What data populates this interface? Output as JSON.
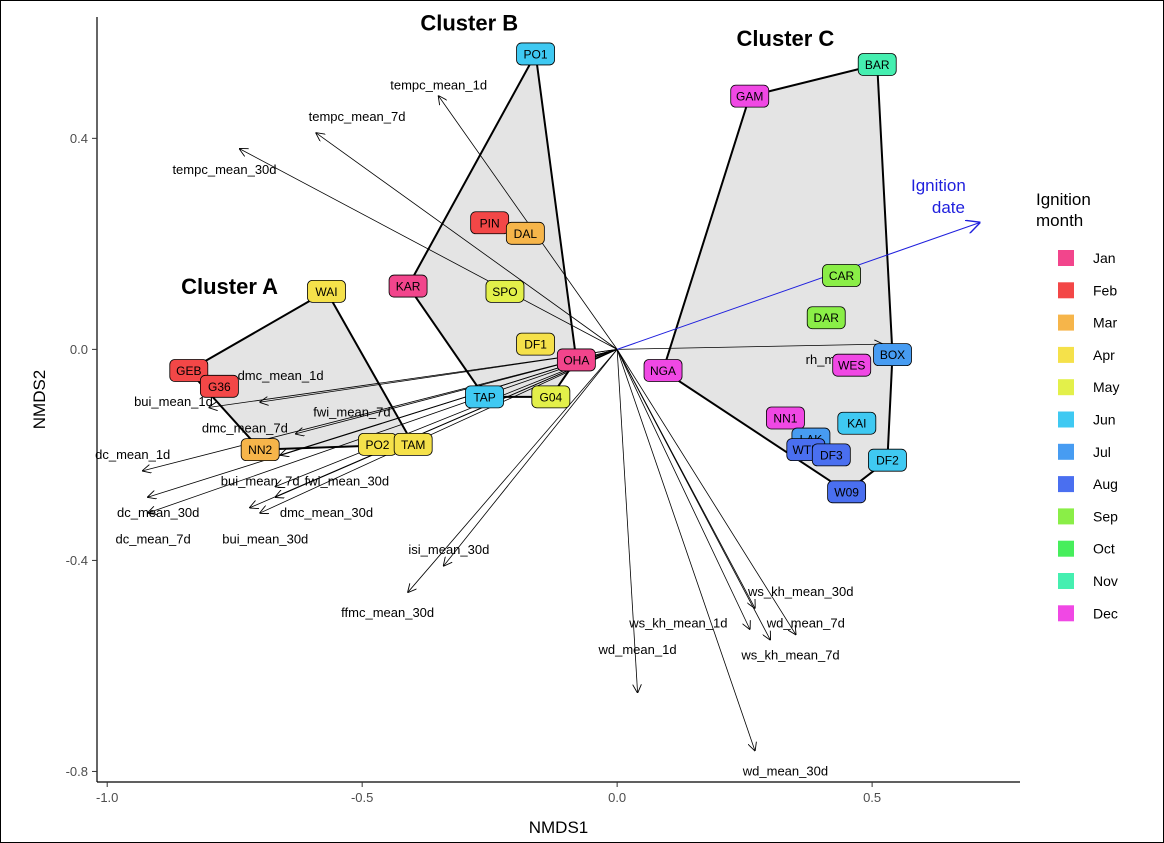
{
  "chart_data": {
    "type": "scatter",
    "xlabel": "NMDS1",
    "ylabel": "NMDS2",
    "xlim": [
      -1.02,
      0.79
    ],
    "ylim": [
      -0.82,
      0.63
    ],
    "xticks": [
      -1.0,
      -0.5,
      0.0,
      0.5
    ],
    "xtick_labels": [
      "-1.0",
      "-0.5",
      "0.0",
      "0.5"
    ],
    "yticks": [
      -0.8,
      -0.4,
      0.0,
      0.4
    ],
    "ytick_labels": [
      "-0.8",
      "-0.4",
      "0.0",
      "0.4"
    ],
    "grid": false,
    "legend": {
      "title_lines": [
        "Ignition",
        "month"
      ],
      "placement": "right",
      "entries": [
        {
          "name": "Jan",
          "color": "#f2458c"
        },
        {
          "name": "Feb",
          "color": "#f34747"
        },
        {
          "name": "Mar",
          "color": "#f6b54a"
        },
        {
          "name": "Apr",
          "color": "#f5e14a"
        },
        {
          "name": "May",
          "color": "#e3f04a"
        },
        {
          "name": "Jun",
          "color": "#3fc9f2"
        },
        {
          "name": "Jul",
          "color": "#479cf2"
        },
        {
          "name": "Aug",
          "color": "#4a6ff0"
        },
        {
          "name": "Sep",
          "color": "#8aee47"
        },
        {
          "name": "Oct",
          "color": "#47ee5c"
        },
        {
          "name": "Nov",
          "color": "#45efb0"
        },
        {
          "name": "Dec",
          "color": "#f048e4"
        }
      ]
    },
    "clusters": [
      {
        "name": "Cluster A",
        "label_at": [
          -0.76,
          0.12
        ],
        "hull": [
          "WAI",
          "GEB",
          "NN2",
          "TAM"
        ]
      },
      {
        "name": "Cluster B",
        "label_at": [
          -0.29,
          0.62
        ],
        "hull": [
          "PO1",
          "OHA",
          "G04",
          "TAP",
          "KAR"
        ]
      },
      {
        "name": "Cluster C",
        "label_at": [
          0.33,
          0.59
        ],
        "hull": [
          "BAR",
          "BOX",
          "DF2",
          "W09",
          "NGA",
          "GAM"
        ]
      }
    ],
    "points": [
      {
        "label": "PO1",
        "x": -0.16,
        "y": 0.56,
        "month": "Jun"
      },
      {
        "label": "BAR",
        "x": 0.51,
        "y": 0.54,
        "month": "Nov"
      },
      {
        "label": "GAM",
        "x": 0.26,
        "y": 0.48,
        "month": "Dec"
      },
      {
        "label": "PIN",
        "x": -0.25,
        "y": 0.24,
        "month": "Feb"
      },
      {
        "label": "DAL",
        "x": -0.18,
        "y": 0.22,
        "month": "Mar"
      },
      {
        "label": "CAR",
        "x": 0.44,
        "y": 0.14,
        "month": "Sep"
      },
      {
        "label": "WAI",
        "x": -0.57,
        "y": 0.11,
        "month": "Apr"
      },
      {
        "label": "KAR",
        "x": -0.41,
        "y": 0.12,
        "month": "Jan"
      },
      {
        "label": "SPO",
        "x": -0.22,
        "y": 0.11,
        "month": "May"
      },
      {
        "label": "DAR",
        "x": 0.41,
        "y": 0.06,
        "month": "Sep"
      },
      {
        "label": "DF1",
        "x": -0.16,
        "y": 0.01,
        "month": "Apr"
      },
      {
        "label": "BOX",
        "x": 0.54,
        "y": -0.01,
        "month": "Jul"
      },
      {
        "label": "OHA",
        "x": -0.08,
        "y": -0.02,
        "month": "Jan"
      },
      {
        "label": "WES",
        "x": 0.46,
        "y": -0.03,
        "month": "Dec"
      },
      {
        "label": "NGA",
        "x": 0.09,
        "y": -0.04,
        "month": "Dec"
      },
      {
        "label": "GEB",
        "x": -0.84,
        "y": -0.04,
        "month": "Feb"
      },
      {
        "label": "G36",
        "x": -0.78,
        "y": -0.07,
        "month": "Feb"
      },
      {
        "label": "TAP",
        "x": -0.26,
        "y": -0.09,
        "month": "Jun"
      },
      {
        "label": "G04",
        "x": -0.13,
        "y": -0.09,
        "month": "May"
      },
      {
        "label": "NN1",
        "x": 0.33,
        "y": -0.13,
        "month": "Dec"
      },
      {
        "label": "KAI",
        "x": 0.47,
        "y": -0.14,
        "month": "Jun"
      },
      {
        "label": "LAK",
        "x": 0.38,
        "y": -0.17,
        "month": "Jul"
      },
      {
        "label": "WTP",
        "x": 0.37,
        "y": -0.19,
        "month": "Aug"
      },
      {
        "label": "DF3",
        "x": 0.42,
        "y": -0.2,
        "month": "Aug"
      },
      {
        "label": "DF2",
        "x": 0.53,
        "y": -0.21,
        "month": "Jun"
      },
      {
        "label": "PO2",
        "x": -0.47,
        "y": -0.18,
        "month": "Apr"
      },
      {
        "label": "TAM",
        "x": -0.4,
        "y": -0.18,
        "month": "Apr"
      },
      {
        "label": "NN2",
        "x": -0.7,
        "y": -0.19,
        "month": "Mar"
      },
      {
        "label": "W09",
        "x": 0.45,
        "y": -0.27,
        "month": "Aug"
      }
    ],
    "vectors": [
      {
        "label": "tempc_mean_1d",
        "x": -0.35,
        "y": 0.48,
        "label_at": [
          -0.35,
          0.5
        ]
      },
      {
        "label": "tempc_mean_7d",
        "x": -0.59,
        "y": 0.41,
        "label_at": [
          -0.51,
          0.44
        ]
      },
      {
        "label": "tempc_mean_30d",
        "x": -0.74,
        "y": 0.38,
        "label_at": [
          -0.77,
          0.34
        ]
      },
      {
        "label": "dmc_mean_1d",
        "x": -0.7,
        "y": -0.1,
        "label_at": [
          -0.66,
          -0.05
        ]
      },
      {
        "label": "bui_mean_1d",
        "x": -0.8,
        "y": -0.11,
        "label_at": [
          -0.87,
          -0.1
        ]
      },
      {
        "label": "fwi_mean_7d",
        "x": -0.66,
        "y": -0.2,
        "label_at": [
          -0.52,
          -0.12
        ]
      },
      {
        "label": "dmc_mean_7d",
        "x": -0.63,
        "y": -0.16,
        "label_at": [
          -0.73,
          -0.15
        ]
      },
      {
        "label": "dc_mean_1d",
        "x": -0.93,
        "y": -0.23,
        "label_at": [
          -0.95,
          -0.2
        ]
      },
      {
        "label": "bui_mean_7d",
        "x": -0.67,
        "y": -0.28,
        "label_at": [
          -0.7,
          -0.25
        ]
      },
      {
        "label": "fwi_mean_30d",
        "x": -0.67,
        "y": -0.26,
        "label_at": [
          -0.53,
          -0.25
        ]
      },
      {
        "label": "dc_mean_30d",
        "x": -0.92,
        "y": -0.28,
        "label_at": [
          -0.9,
          -0.31
        ]
      },
      {
        "label": "dmc_mean_30d",
        "x": -0.72,
        "y": -0.3,
        "label_at": [
          -0.57,
          -0.31
        ]
      },
      {
        "label": "dc_mean_7d",
        "x": -0.92,
        "y": -0.31,
        "label_at": [
          -0.91,
          -0.36
        ]
      },
      {
        "label": "bui_mean_30d",
        "x": -0.7,
        "y": -0.31,
        "label_at": [
          -0.69,
          -0.36
        ]
      },
      {
        "label": "isi_mean_30d",
        "x": -0.34,
        "y": -0.41,
        "label_at": [
          -0.33,
          -0.38
        ]
      },
      {
        "label": "ffmc_mean_30d",
        "x": -0.41,
        "y": -0.46,
        "label_at": [
          -0.45,
          -0.5
        ]
      },
      {
        "label": "rh_mean",
        "x": 0.52,
        "y": 0.01,
        "label_at": [
          0.42,
          -0.02
        ]
      },
      {
        "label": "ws_kh_mean_30d",
        "x": 0.27,
        "y": -0.49,
        "label_at": [
          0.36,
          -0.46
        ]
      },
      {
        "label": "ws_kh_mean_1d",
        "x": 0.26,
        "y": -0.53,
        "label_at": [
          0.12,
          -0.52
        ]
      },
      {
        "label": "wd_mean_7d",
        "x": 0.35,
        "y": -0.54,
        "label_at": [
          0.37,
          -0.52
        ]
      },
      {
        "label": "ws_kh_mean_7d",
        "x": 0.3,
        "y": -0.55,
        "label_at": [
          0.34,
          -0.58
        ]
      },
      {
        "label": "wd_mean_1d",
        "x": 0.04,
        "y": -0.65,
        "label_at": [
          0.04,
          -0.57
        ]
      },
      {
        "label": "wd_mean_30d",
        "x": 0.27,
        "y": -0.76,
        "label_at": [
          0.33,
          -0.8
        ]
      }
    ],
    "time_vector": {
      "label_lines": [
        "Ignition",
        "date"
      ],
      "x": 0.71,
      "y": 0.24,
      "color": "#1f1fdd"
    }
  }
}
